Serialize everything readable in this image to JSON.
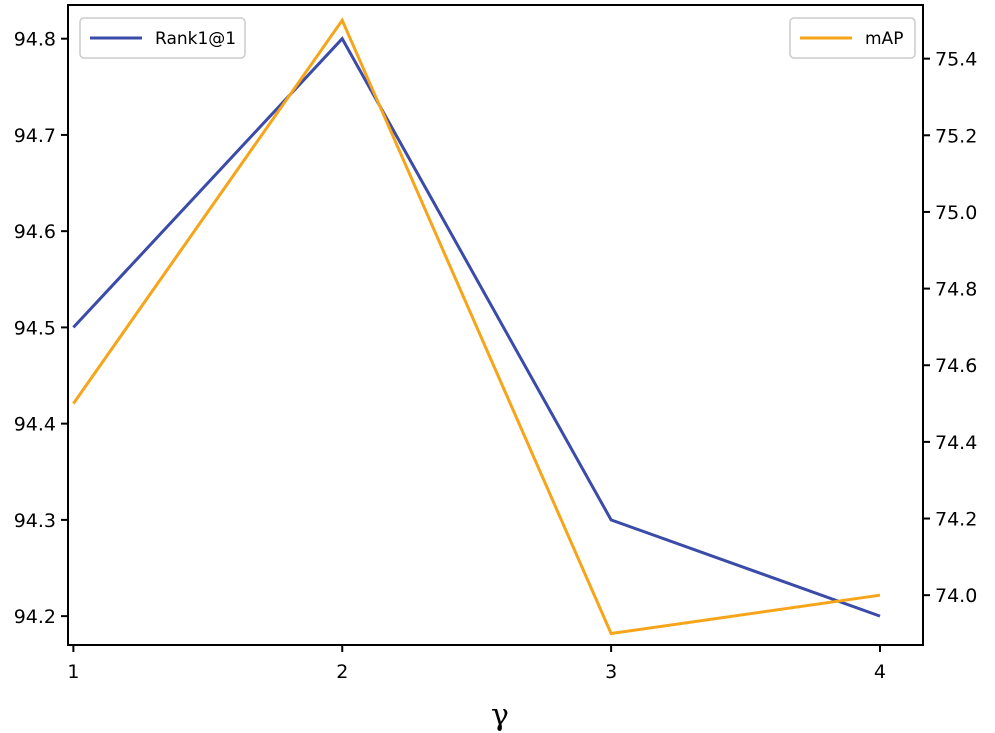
{
  "chart_data": {
    "type": "line",
    "title": "",
    "xlabel": "γ",
    "x": [
      1,
      2,
      3,
      4
    ],
    "xticks": [
      "1",
      "2",
      "3",
      "4"
    ],
    "xlim": [
      0.98,
      4.16
    ],
    "grid": false,
    "axes": {
      "left": {
        "ylabel": "",
        "ylim": [
          94.17,
          94.835
        ],
        "ticks": [
          "94.2",
          "94.3",
          "94.4",
          "94.5",
          "94.6",
          "94.7",
          "94.8"
        ]
      },
      "right": {
        "ylabel": "",
        "ylim": [
          73.87,
          75.54
        ],
        "ticks": [
          "74.0",
          "74.2",
          "74.4",
          "74.6",
          "74.8",
          "75.0",
          "75.2",
          "75.4"
        ]
      }
    },
    "series": [
      {
        "name": "Rank1@1",
        "axis": "left",
        "color": "#3b4ba8",
        "values": [
          94.5,
          94.8,
          94.3,
          94.2
        ]
      },
      {
        "name": "mAP",
        "axis": "right",
        "color": "#f6a51a",
        "values": [
          74.5,
          75.5,
          73.9,
          74.0
        ]
      }
    ],
    "legends": [
      {
        "series": "Rank1@1",
        "placement": "upper-left"
      },
      {
        "series": "mAP",
        "placement": "upper-right"
      }
    ]
  }
}
